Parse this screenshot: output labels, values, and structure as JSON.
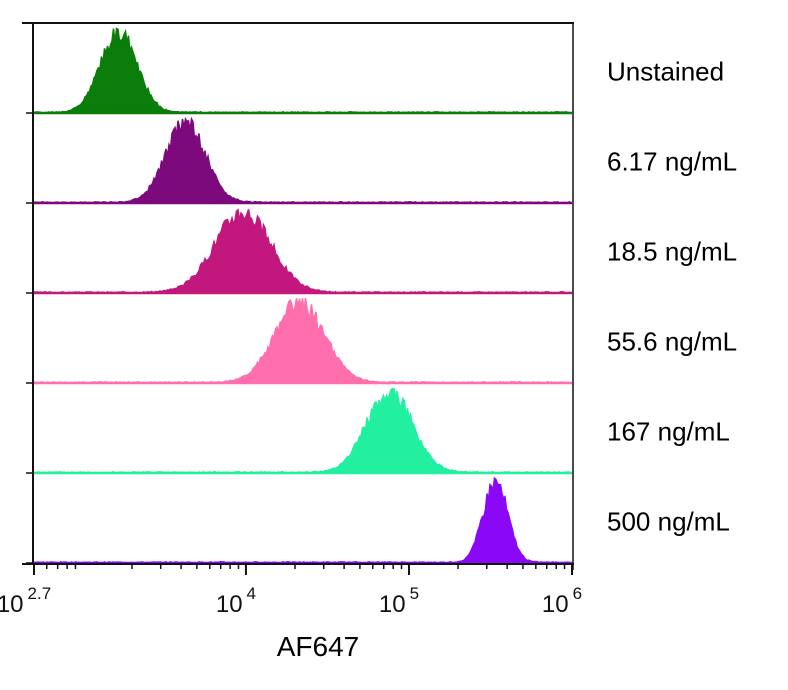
{
  "chart_data": {
    "type": "area",
    "title": "",
    "xlabel": "AF647",
    "ylabel": "",
    "xscale": "log",
    "xlim_log10": [
      2.7,
      6
    ],
    "x_ticks": [
      {
        "base": "10",
        "exp": "2.7",
        "log10": 2.7
      },
      {
        "base": "10",
        "exp": "4",
        "log10": 4
      },
      {
        "base": "10",
        "exp": "5",
        "log10": 5
      },
      {
        "base": "10",
        "exp": "6",
        "log10": 6
      }
    ],
    "grid": false,
    "legend_placement": "right",
    "series": [
      {
        "name": "Unstained",
        "color": "#0a7d0a",
        "peak_log10": 3.22,
        "sigma_log10": 0.11,
        "seed": 1
      },
      {
        "name": "6.17 ng/mL",
        "color": "#7d0a7d",
        "peak_log10": 3.63,
        "sigma_log10": 0.12,
        "seed": 2
      },
      {
        "name": "18.5 ng/mL",
        "color": "#c2187d",
        "peak_log10": 3.98,
        "sigma_log10": 0.17,
        "seed": 3
      },
      {
        "name": "55.6 ng/mL",
        "color": "#ff6fae",
        "peak_log10": 4.33,
        "sigma_log10": 0.15,
        "seed": 4
      },
      {
        "name": "167 ng/mL",
        "color": "#22f0a0",
        "peak_log10": 4.88,
        "sigma_log10": 0.14,
        "seed": 5
      },
      {
        "name": "500 ng/mL",
        "color": "#8a08f5",
        "peak_log10": 5.53,
        "sigma_log10": 0.075,
        "seed": 6
      }
    ]
  }
}
